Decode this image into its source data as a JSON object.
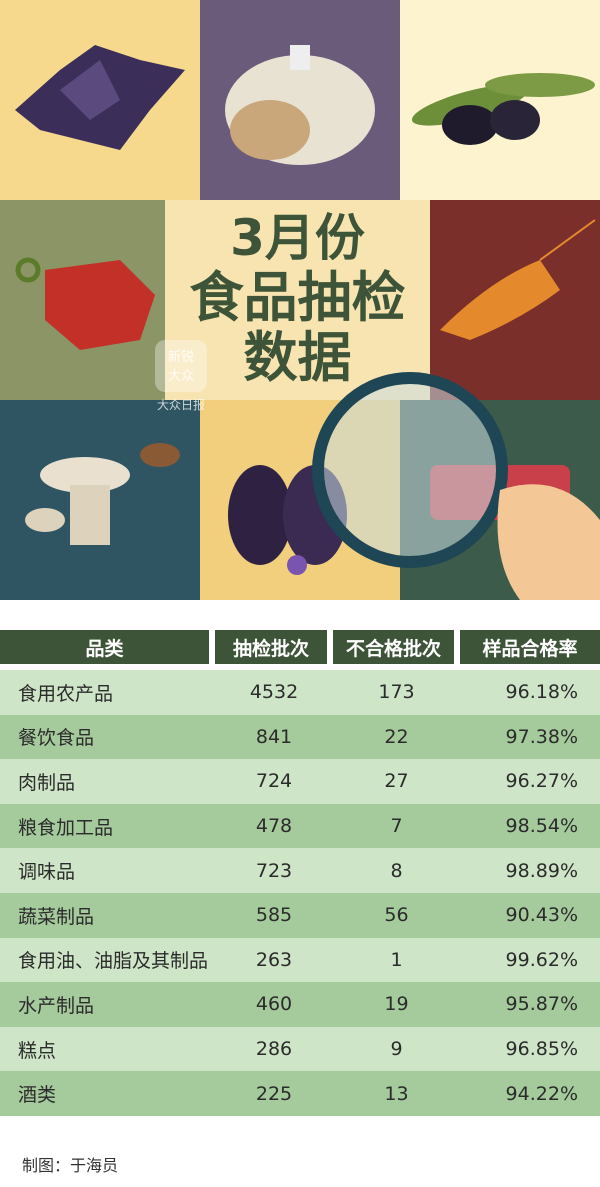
{
  "header": {
    "title_line1": "3月份",
    "title_line2": "食品抽检",
    "title_line3": "数据"
  },
  "watermark": {
    "top": "新锐",
    "logo": "大众",
    "bottom": "大众日报"
  },
  "colors": {
    "header_bg": "#3d5438",
    "row_light": "#cfe5c8",
    "row_dark": "#a5ca9c",
    "title_text": "#3d5438"
  },
  "chart_data": {
    "type": "table",
    "columns": [
      "品类",
      "抽检批次",
      "不合格批次",
      "样品合格率"
    ],
    "rows": [
      [
        "食用农产品",
        "4532",
        "173",
        "96.18%"
      ],
      [
        "餐饮食品",
        "841",
        "22",
        "97.38%"
      ],
      [
        "肉制品",
        "724",
        "27",
        "96.27%"
      ],
      [
        "粮食加工品",
        "478",
        "7",
        "98.54%"
      ],
      [
        "调味品",
        "723",
        "8",
        "98.89%"
      ],
      [
        "蔬菜制品",
        "585",
        "56",
        "90.43%"
      ],
      [
        "食用油、油脂及其制品",
        "263",
        "1",
        "99.62%"
      ],
      [
        "水产制品",
        "460",
        "19",
        "95.87%"
      ],
      [
        "糕点",
        "286",
        "9",
        "96.85%"
      ],
      [
        "酒类",
        "225",
        "13",
        "94.22%"
      ]
    ]
  },
  "footer": {
    "credit": "制图：于海员"
  }
}
